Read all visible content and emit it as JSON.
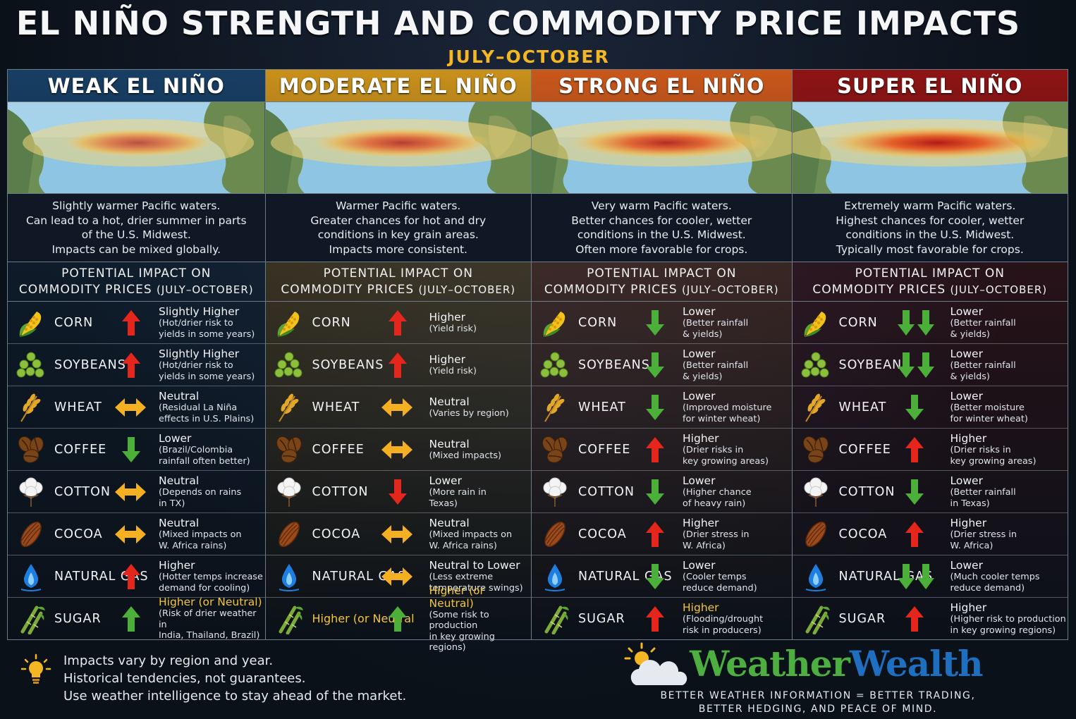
{
  "title": "EL NIÑO STRENGTH AND COMMODITY PRICE IMPACTS",
  "subtitle": "JULY–OCTOBER",
  "impact_heading_line1": "POTENTIAL IMPACT ON",
  "impact_heading_line2": "COMMODITY PRICES",
  "impact_heading_period": "(JULY–OCTOBER)",
  "panels": [
    {
      "header": "WEAK EL NIÑO",
      "header_color": "#173e63",
      "intensity": 0.3,
      "description": [
        "Slightly warmer Pacific waters.",
        "Can lead to a hot, drier summer in parts",
        "of the U.S. Midwest.",
        "Impacts can be mixed globally."
      ],
      "commodities": [
        {
          "name": "CORN",
          "arrow": "up",
          "lead": "Slightly Higher",
          "detail": [
            "(Hot/drier risk to",
            "yields in some years)"
          ]
        },
        {
          "name": "SOYBEANS",
          "arrow": "up",
          "lead": "Slightly Higher",
          "detail": [
            "(Hot/drier risk to",
            "yields in some years)"
          ]
        },
        {
          "name": "WHEAT",
          "arrow": "both",
          "lead": "Neutral",
          "detail": [
            "(Residual La Niña",
            "effects in U.S. Plains)"
          ]
        },
        {
          "name": "COFFEE",
          "arrow": "down",
          "lead": "Lower",
          "detail": [
            "(Brazil/Colombia",
            "rainfall often better)"
          ]
        },
        {
          "name": "COTTON",
          "arrow": "both",
          "lead": "Neutral",
          "detail": [
            "(Depends on rains",
            "in TX)"
          ]
        },
        {
          "name": "COCOA",
          "arrow": "both",
          "lead": "Neutral",
          "detail": [
            "(Mixed impacts on",
            "W. Africa rains)"
          ]
        },
        {
          "name": "NATURAL GAS",
          "arrow": "up",
          "lead": "Higher",
          "detail": [
            "(Hotter temps increase",
            "demand for cooling)"
          ]
        },
        {
          "name": "SUGAR",
          "arrow": "up-green",
          "lead": "Higher (or Neutral)",
          "lead_gold": true,
          "detail": [
            "(Risk of drier weather in",
            "India, Thailand, Brazil)"
          ]
        }
      ]
    },
    {
      "header": "MODERATE EL NIÑO",
      "header_color": "#c9901a",
      "intensity": 0.55,
      "description": [
        "Warmer Pacific waters.",
        "Greater chances for hot and dry",
        "conditions in key grain areas.",
        "Impacts more consistent."
      ],
      "commodities": [
        {
          "name": "CORN",
          "arrow": "up",
          "lead": "Higher",
          "detail": [
            "(Yield risk)"
          ]
        },
        {
          "name": "SOYBEANS",
          "arrow": "up",
          "lead": "Higher",
          "detail": [
            "(Yield risk)"
          ]
        },
        {
          "name": "WHEAT",
          "arrow": "both",
          "lead": "Neutral",
          "detail": [
            "(Varies by region)"
          ]
        },
        {
          "name": "COFFEE",
          "arrow": "both",
          "lead": "Neutral",
          "detail": [
            "(Mixed impacts)"
          ]
        },
        {
          "name": "COTTON",
          "arrow": "down-red",
          "lead": "Lower",
          "detail": [
            "(More rain in",
            "Texas)"
          ]
        },
        {
          "name": "COCOA",
          "arrow": "both",
          "lead": "Neutral",
          "detail": [
            "(Mixed impacts on",
            "W. Africa rains)"
          ]
        },
        {
          "name": "NATURAL GAS",
          "arrow": "both",
          "lead": "Neutral to Lower",
          "detail": [
            "(Less extreme",
            "temperature swings)"
          ]
        },
        {
          "name": "Higher (or Neutral",
          "name_gold": true,
          "arrow": "up-green",
          "lead": "Higher (or Neutral)",
          "lead_gold": true,
          "detail": [
            "(Some risk to production",
            "in key growing regions)"
          ]
        }
      ]
    },
    {
      "header": "STRONG EL NIÑO",
      "header_color": "#c9571a",
      "intensity": 0.78,
      "description": [
        "Very warm Pacific waters.",
        "Better chances for cooler, wetter",
        "conditions in the U.S. Midwest.",
        "Often more favorable for crops."
      ],
      "commodities": [
        {
          "name": "CORN",
          "arrow": "down",
          "lead": "Lower",
          "detail": [
            "(Better rainfall",
            "& yields)"
          ]
        },
        {
          "name": "SOYBEANS",
          "arrow": "down",
          "lead": "Lower",
          "detail": [
            "(Better rainfall",
            "& yields)"
          ]
        },
        {
          "name": "WHEAT",
          "arrow": "down",
          "lead": "Lower",
          "detail": [
            "(Improved moisture",
            "for winter wheat)"
          ]
        },
        {
          "name": "COFFEE",
          "arrow": "up",
          "lead": "Higher",
          "detail": [
            "(Drier risks in",
            "key growing areas)"
          ]
        },
        {
          "name": "COTTON",
          "arrow": "down",
          "lead": "Lower",
          "detail": [
            "(Higher chance",
            "of heavy rain)"
          ]
        },
        {
          "name": "COCOA",
          "arrow": "up",
          "lead": "Higher",
          "detail": [
            "(Drier stress in",
            "W. Africa)"
          ]
        },
        {
          "name": "NATURAL GAS",
          "arrow": "down",
          "lead": "Lower",
          "detail": [
            "(Cooler temps",
            "reduce demand)"
          ]
        },
        {
          "name": "SUGAR",
          "arrow": "up",
          "lead": "Higher",
          "lead_gold": true,
          "detail": [
            "(Flooding/drought",
            "risk in producers)"
          ]
        }
      ]
    },
    {
      "header": "SUPER EL NIÑO",
      "header_color": "#8e1414",
      "intensity": 1.0,
      "description": [
        "Extremely warm Pacific waters.",
        "Highest chances for cooler, wetter",
        "conditions in the U.S. Midwest.",
        "Typically most favorable for crops."
      ],
      "commodities": [
        {
          "name": "CORN",
          "arrow": "down2",
          "lead": "Lower",
          "detail": [
            "(Better rainfall",
            "& yields)"
          ]
        },
        {
          "name": "SOYBEANS",
          "arrow": "down2",
          "lead": "Lower",
          "detail": [
            "(Better rainfall",
            "& yields)"
          ]
        },
        {
          "name": "WHEAT",
          "arrow": "down",
          "lead": "Lower",
          "detail": [
            "(Better moisture",
            "for winter wheat)"
          ]
        },
        {
          "name": "COFFEE",
          "arrow": "up",
          "lead": "Higher",
          "detail": [
            "(Drier risks in",
            "key growing areas)"
          ]
        },
        {
          "name": "COTTON",
          "arrow": "down",
          "lead": "Lower",
          "detail": [
            "(Better rainfall",
            "in Texas)"
          ]
        },
        {
          "name": "COCOA",
          "arrow": "up",
          "lead": "Higher",
          "detail": [
            "(Drier stress in",
            "W. Africa)"
          ]
        },
        {
          "name": "NATURAL GAS",
          "arrow": "down2",
          "lead": "Lower",
          "detail": [
            "(Much cooler temps",
            "reduce demand)"
          ]
        },
        {
          "name": "SUGAR",
          "arrow": "up",
          "lead": "Higher",
          "detail": [
            "(Higher risk to production",
            "in key growing regions)"
          ]
        }
      ]
    }
  ],
  "footer_notes": [
    "Impacts vary by region and year.",
    "Historical tendencies, not guarantees.",
    "Use weather intelligence to stay ahead of the market."
  ],
  "brand_part1": "Weather",
  "brand_part2": "Wealth",
  "tagline": [
    "BETTER WEATHER INFORMATION = BETTER TRADING,",
    "BETTER HEDGING, AND PEACE OF MIND."
  ]
}
